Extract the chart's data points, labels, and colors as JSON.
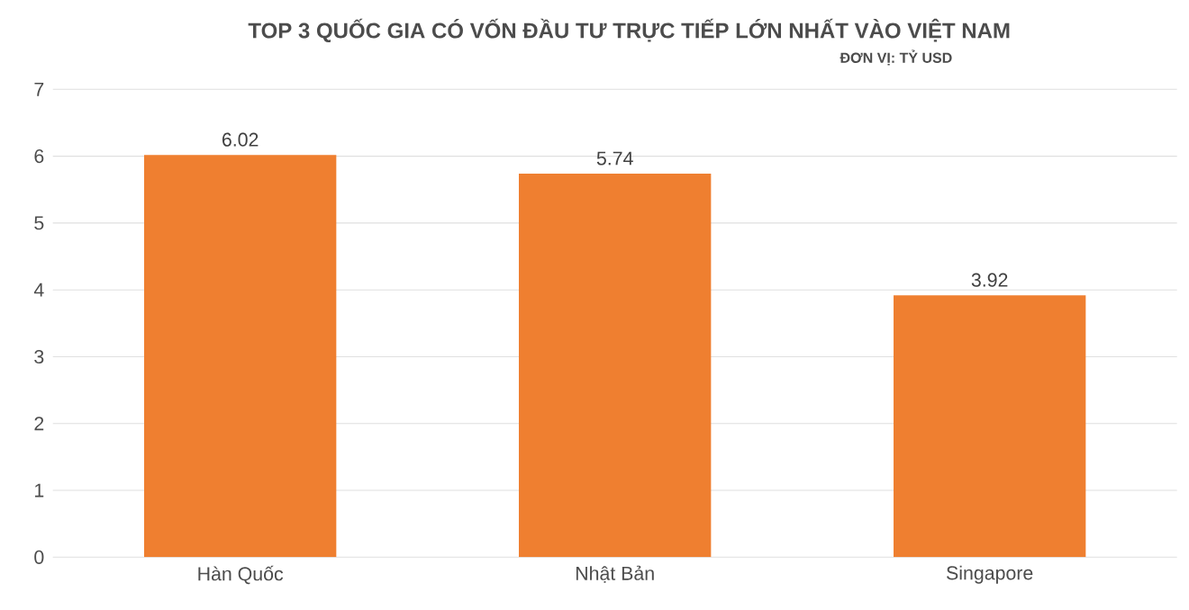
{
  "chart_data": {
    "type": "bar",
    "title": "TOP 3 QUỐC GIA CÓ VỐN ĐẦU TƯ TRỰC TIẾP LỚN NHẤT VÀO VIỆT NAM",
    "subtitle": "ĐƠN VỊ: TỶ USD",
    "categories": [
      "Hàn Quốc",
      "Nhật Bản",
      "Singapore"
    ],
    "values": [
      6.02,
      5.74,
      3.92
    ],
    "color": "#ef7f30",
    "ylim": [
      0,
      7
    ],
    "yticks": [
      0,
      1,
      2,
      3,
      4,
      5,
      6,
      7
    ],
    "grid": "y",
    "data_labels": true
  }
}
